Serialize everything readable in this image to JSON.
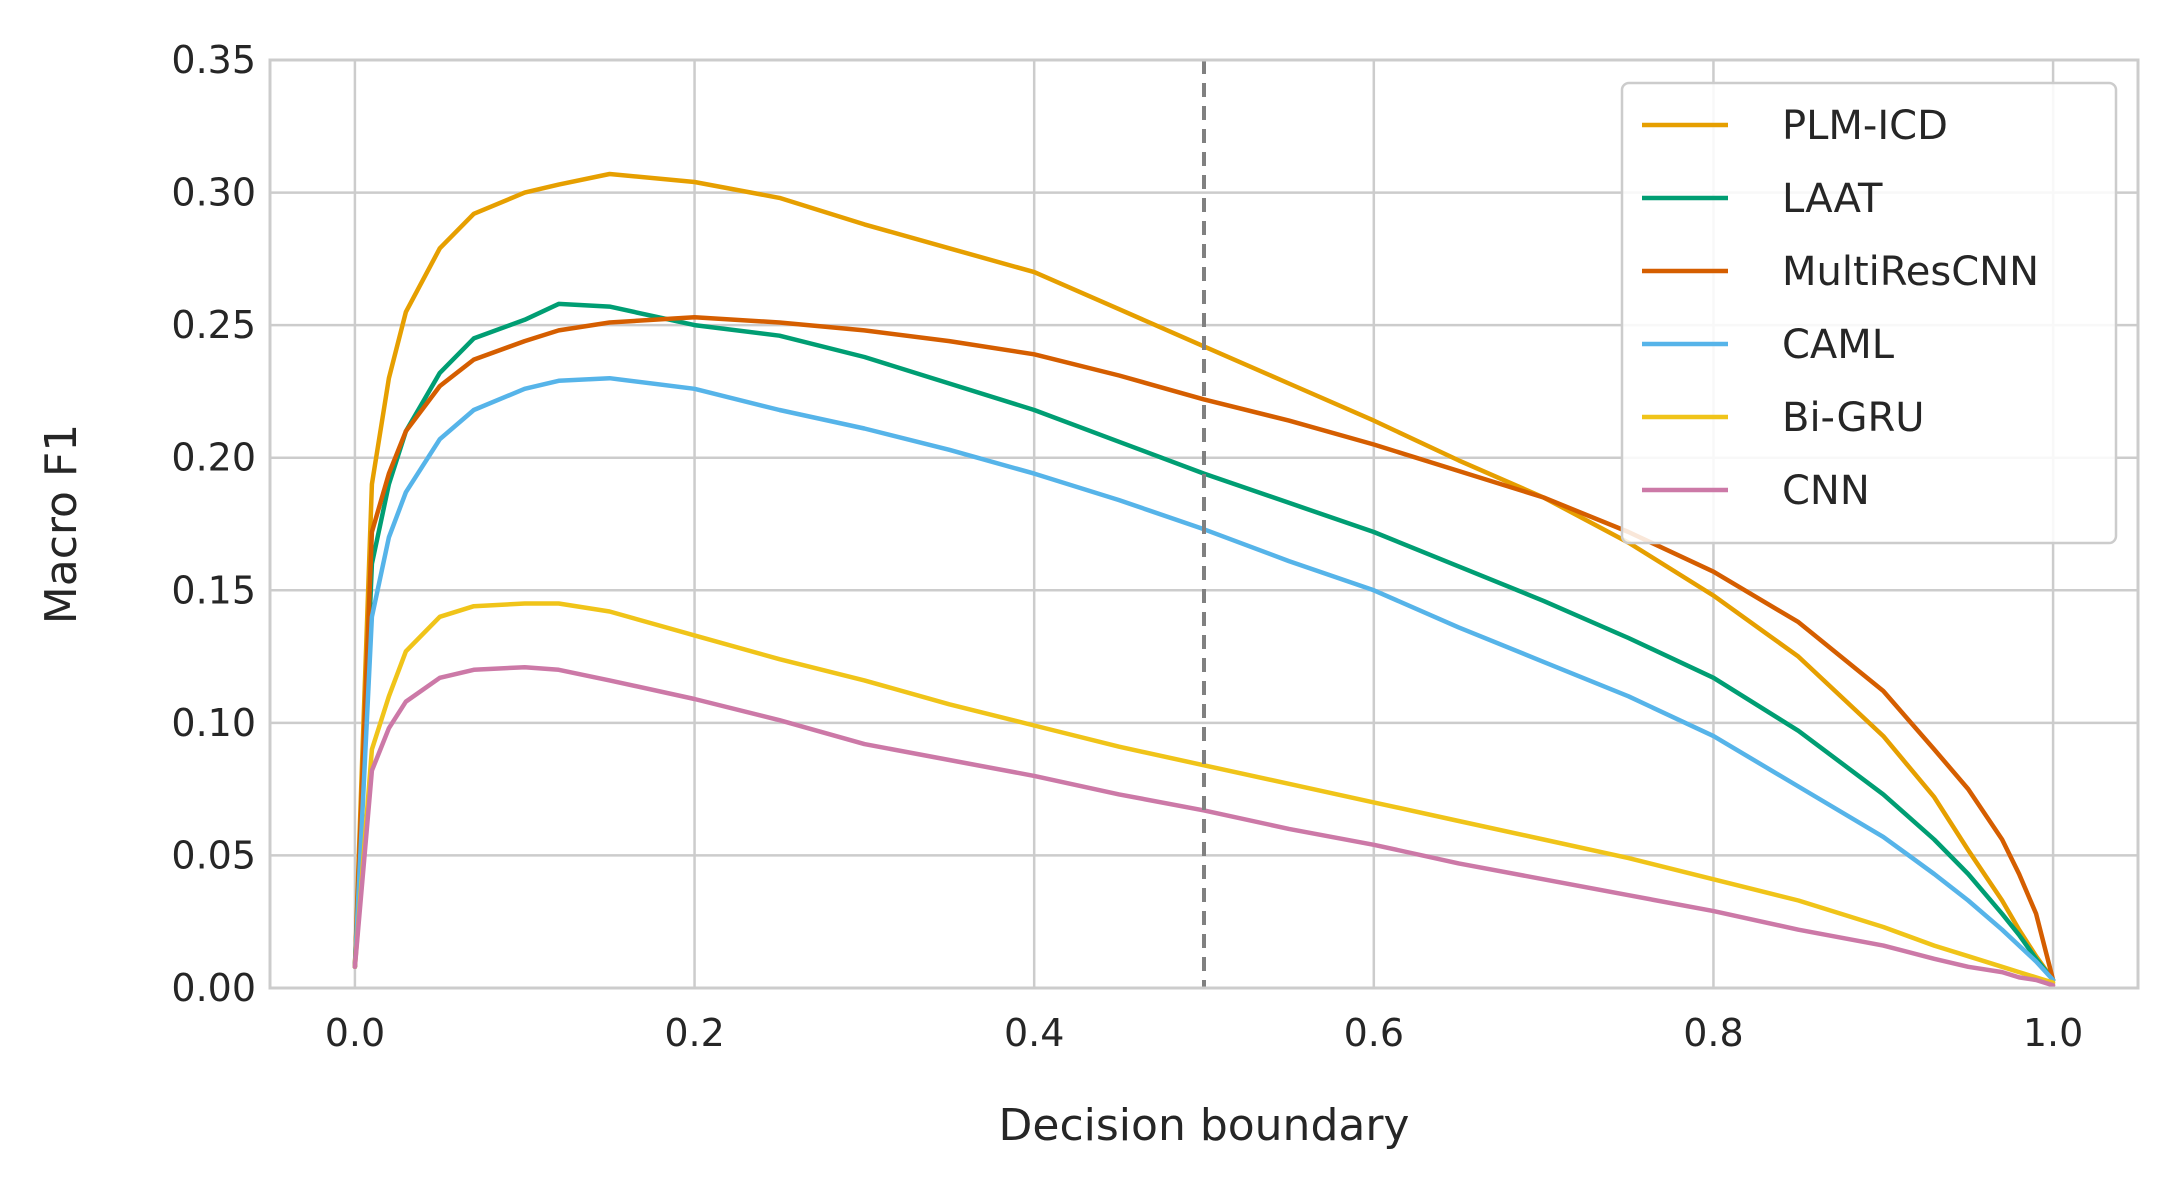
{
  "chart_data": {
    "type": "line",
    "xlabel": "Decision boundary",
    "ylabel": "Macro F1",
    "xlim": [
      -0.05,
      1.05
    ],
    "ylim": [
      0.0,
      0.35
    ],
    "xticks": [
      "0.0",
      "0.2",
      "0.4",
      "0.6",
      "0.8",
      "1.0"
    ],
    "yticks": [
      "0.00",
      "0.05",
      "0.10",
      "0.15",
      "0.20",
      "0.25",
      "0.30",
      "0.35"
    ],
    "grid": true,
    "legend_position": "top-right",
    "vline": {
      "x": 0.5,
      "style": "dashed",
      "color": "#808080"
    },
    "x": [
      0.0,
      0.01,
      0.02,
      0.03,
      0.05,
      0.07,
      0.1,
      0.12,
      0.15,
      0.2,
      0.25,
      0.3,
      0.35,
      0.4,
      0.45,
      0.5,
      0.55,
      0.6,
      0.65,
      0.7,
      0.75,
      0.8,
      0.85,
      0.9,
      0.93,
      0.95,
      0.97,
      0.98,
      0.99,
      1.0
    ],
    "series": [
      {
        "name": "PLM-ICD",
        "color": "#E69F00",
        "values": [
          0.008,
          0.19,
          0.23,
          0.255,
          0.279,
          0.292,
          0.3,
          0.303,
          0.307,
          0.304,
          0.298,
          0.288,
          0.279,
          0.27,
          0.256,
          0.242,
          0.228,
          0.214,
          0.199,
          0.185,
          0.168,
          0.148,
          0.125,
          0.095,
          0.072,
          0.052,
          0.033,
          0.022,
          0.012,
          0.003
        ]
      },
      {
        "name": "LAAT",
        "color": "#009E73",
        "values": [
          0.008,
          0.16,
          0.19,
          0.21,
          0.232,
          0.245,
          0.252,
          0.258,
          0.257,
          0.25,
          0.246,
          0.238,
          0.228,
          0.218,
          0.206,
          0.194,
          0.183,
          0.172,
          0.159,
          0.146,
          0.132,
          0.117,
          0.097,
          0.073,
          0.056,
          0.043,
          0.028,
          0.02,
          0.011,
          0.003
        ]
      },
      {
        "name": "MultiResCNN",
        "color": "#D55E00",
        "values": [
          0.008,
          0.172,
          0.194,
          0.21,
          0.227,
          0.237,
          0.244,
          0.248,
          0.251,
          0.253,
          0.251,
          0.248,
          0.244,
          0.239,
          0.231,
          0.222,
          0.214,
          0.205,
          0.195,
          0.185,
          0.172,
          0.157,
          0.138,
          0.112,
          0.09,
          0.075,
          0.056,
          0.043,
          0.028,
          0.003
        ]
      },
      {
        "name": "CAML",
        "color": "#56B4E9",
        "values": [
          0.008,
          0.14,
          0.17,
          0.187,
          0.207,
          0.218,
          0.226,
          0.229,
          0.23,
          0.226,
          0.218,
          0.211,
          0.203,
          0.194,
          0.184,
          0.173,
          0.161,
          0.15,
          0.136,
          0.123,
          0.11,
          0.095,
          0.076,
          0.057,
          0.043,
          0.033,
          0.022,
          0.016,
          0.01,
          0.003
        ]
      },
      {
        "name": "Bi-GRU",
        "color": "#F0C419",
        "values": [
          0.008,
          0.09,
          0.11,
          0.127,
          0.14,
          0.144,
          0.145,
          0.145,
          0.142,
          0.133,
          0.124,
          0.116,
          0.107,
          0.099,
          0.091,
          0.084,
          0.077,
          0.07,
          0.063,
          0.056,
          0.049,
          0.041,
          0.033,
          0.023,
          0.016,
          0.012,
          0.008,
          0.006,
          0.004,
          0.002
        ]
      },
      {
        "name": "CNN",
        "color": "#CC79A7",
        "values": [
          0.008,
          0.082,
          0.098,
          0.108,
          0.117,
          0.12,
          0.121,
          0.12,
          0.116,
          0.109,
          0.101,
          0.092,
          0.086,
          0.08,
          0.073,
          0.067,
          0.06,
          0.054,
          0.047,
          0.041,
          0.035,
          0.029,
          0.022,
          0.016,
          0.011,
          0.008,
          0.006,
          0.004,
          0.003,
          0.001
        ]
      }
    ]
  }
}
